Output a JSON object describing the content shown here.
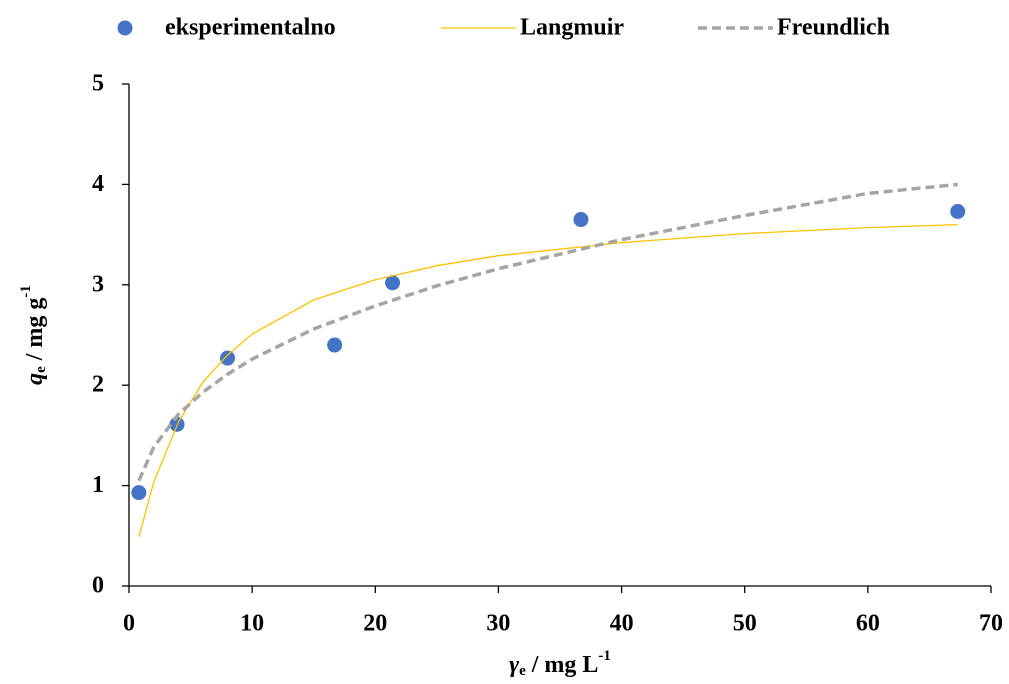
{
  "chart_data": {
    "type": "scatter",
    "xlabel": {
      "symbol": "γ",
      "subscript": "e",
      "unit": " / mg L",
      "superscript": "-1"
    },
    "ylabel": {
      "symbol": "q",
      "subscript": "e",
      "unit": " / mg g",
      "superscript": "-1"
    },
    "xlim": [
      0,
      70
    ],
    "xticks": [
      0,
      10,
      20,
      30,
      40,
      50,
      60,
      70
    ],
    "ylim": [
      0,
      5
    ],
    "yticks": [
      0,
      1,
      2,
      3,
      4,
      5
    ],
    "grid": false,
    "legend": "top",
    "series": [
      {
        "name": "eksperimentalno",
        "mode": "markers",
        "color": "#4472c4",
        "x": [
          0.8,
          3.9,
          8.0,
          16.7,
          21.4,
          36.7,
          67.3
        ],
        "values": [
          0.93,
          1.61,
          2.27,
          2.4,
          3.02,
          3.65,
          3.73
        ]
      },
      {
        "name": "Langmuir",
        "mode": "line",
        "color": "#ffc000",
        "dashed": false,
        "x": [
          0.8,
          2,
          4,
          6,
          8,
          10,
          15,
          20,
          25,
          30,
          40,
          50,
          60,
          67.3
        ],
        "values": [
          0.49,
          1.03,
          1.63,
          2.03,
          2.3,
          2.51,
          2.85,
          3.05,
          3.19,
          3.29,
          3.42,
          3.51,
          3.57,
          3.6
        ]
      },
      {
        "name": "Freundlich",
        "mode": "line",
        "color": "#a5a5a5",
        "dashed": true,
        "x": [
          0.8,
          2,
          4,
          6,
          8,
          10,
          15,
          20,
          25,
          30,
          40,
          50,
          60,
          67.3
        ],
        "values": [
          1.05,
          1.38,
          1.71,
          1.93,
          2.11,
          2.26,
          2.56,
          2.79,
          2.99,
          3.16,
          3.45,
          3.69,
          3.91,
          4.0
        ]
      }
    ]
  }
}
